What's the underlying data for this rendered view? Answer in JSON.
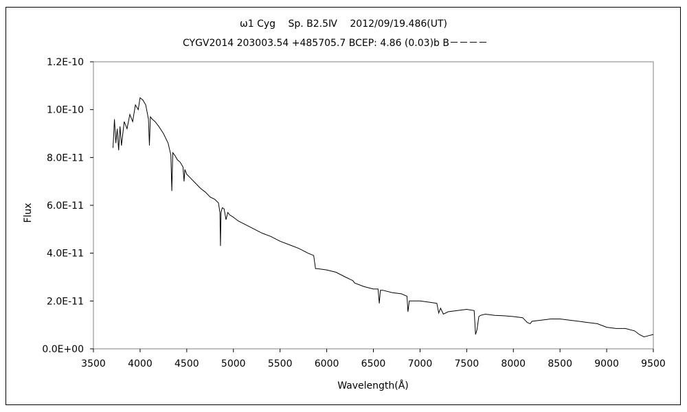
{
  "chart_data": {
    "type": "line",
    "title": "ω1 Cyg　 Sp. B2.5Ⅳ　 2012/09/19.486(UT)",
    "subtitle": "CYGV2014 203003.54 +485705.7 BCEP: 4.86 (0.03)b B－－－－",
    "xlabel": "Wavelength(Å)",
    "ylabel": "Flux",
    "xlim": [
      3500,
      9500
    ],
    "ylim": [
      0,
      1.2e-10
    ],
    "x_ticks": [
      3500,
      4000,
      4500,
      5000,
      5500,
      6000,
      6500,
      7000,
      7500,
      8000,
      8500,
      9000,
      9500
    ],
    "x_tick_labels": [
      "3500",
      "4000",
      "4500",
      "5000",
      "5500",
      "6000",
      "6500",
      "7000",
      "7500",
      "8000",
      "8500",
      "9000",
      "9500"
    ],
    "y_ticks": [
      0,
      2e-11,
      4e-11,
      6e-11,
      8e-11,
      1e-10,
      1.2e-10
    ],
    "y_tick_labels": [
      "0.0E+00",
      "2.0E-11",
      "4.0E-11",
      "6.0E-11",
      "8.0E-11",
      "1.0E-10",
      "1.2E-10"
    ],
    "grid": false,
    "legend": "none",
    "line_color": "#000000",
    "series": [
      {
        "x": [
          3710,
          3725,
          3740,
          3755,
          3770,
          3785,
          3800,
          3830,
          3860,
          3890,
          3920,
          3950,
          3980,
          4000,
          4030,
          4060,
          4090,
          4100,
          4110,
          4130,
          4160,
          4200,
          4250,
          4300,
          4330,
          4340,
          4350,
          4370,
          4400,
          4430,
          4460,
          4471,
          4480,
          4500,
          4550,
          4600,
          4650,
          4700,
          4750,
          4800,
          4840,
          4855,
          4861,
          4867,
          4880,
          4900,
          4921,
          4940,
          4960,
          5000,
          5050,
          5100,
          5200,
          5300,
          5400,
          5500,
          5600,
          5700,
          5800,
          5860,
          5880,
          5900,
          6000,
          6100,
          6200,
          6280,
          6300,
          6400,
          6500,
          6550,
          6563,
          6575,
          6600,
          6700,
          6800,
          6860,
          6870,
          6885,
          6900,
          7000,
          7100,
          7180,
          7200,
          7220,
          7250,
          7300,
          7400,
          7500,
          7580,
          7595,
          7610,
          7630,
          7650,
          7700,
          7800,
          7900,
          8000,
          8100,
          8150,
          8180,
          8200,
          8300,
          8400,
          8500,
          8600,
          8700,
          8800,
          8900,
          9000,
          9100,
          9200,
          9300,
          9350,
          9400,
          9450,
          9500
        ],
        "y": [
          8.4e-11,
          9.6e-11,
          8.6e-11,
          9.2e-11,
          8.3e-11,
          9.3e-11,
          8.5e-11,
          9.5e-11,
          9.2e-11,
          9.8e-11,
          9.5e-11,
          1.02e-10,
          1e-10,
          1.05e-10,
          1.04e-10,
          1.02e-10,
          9.6e-11,
          8.5e-11,
          9.7e-11,
          9.6e-11,
          9.5e-11,
          9.3e-11,
          9e-11,
          8.6e-11,
          8.1e-11,
          6.6e-11,
          8.2e-11,
          8.1e-11,
          7.9e-11,
          7.8e-11,
          7.6e-11,
          7e-11,
          7.5e-11,
          7.3e-11,
          7.1e-11,
          6.9e-11,
          6.7e-11,
          6.55e-11,
          6.35e-11,
          6.25e-11,
          6.1e-11,
          5.7e-11,
          4.3e-11,
          5.7e-11,
          5.9e-11,
          5.85e-11,
          5.4e-11,
          5.7e-11,
          5.6e-11,
          5.5e-11,
          5.35e-11,
          5.25e-11,
          5.05e-11,
          4.85e-11,
          4.7e-11,
          4.5e-11,
          4.35e-11,
          4.2e-11,
          4e-11,
          3.9e-11,
          3.35e-11,
          3.35e-11,
          3.3e-11,
          3.2e-11,
          3e-11,
          2.85e-11,
          2.75e-11,
          2.6e-11,
          2.5e-11,
          2.5e-11,
          1.9e-11,
          2.45e-11,
          2.45e-11,
          2.35e-11,
          2.3e-11,
          2.2e-11,
          1.55e-11,
          2e-11,
          2e-11,
          2e-11,
          1.95e-11,
          1.9e-11,
          1.5e-11,
          1.7e-11,
          1.45e-11,
          1.55e-11,
          1.6e-11,
          1.65e-11,
          1.6e-11,
          6e-12,
          8e-12,
          1.35e-11,
          1.4e-11,
          1.45e-11,
          1.4e-11,
          1.38e-11,
          1.35e-11,
          1.3e-11,
          1.1e-11,
          1.05e-11,
          1.15e-11,
          1.2e-11,
          1.25e-11,
          1.25e-11,
          1.2e-11,
          1.15e-11,
          1.1e-11,
          1.05e-11,
          9e-12,
          8.5e-12,
          8.5e-12,
          7.5e-12,
          6e-12,
          5e-12,
          5.5e-12,
          6e-12
        ]
      }
    ]
  }
}
